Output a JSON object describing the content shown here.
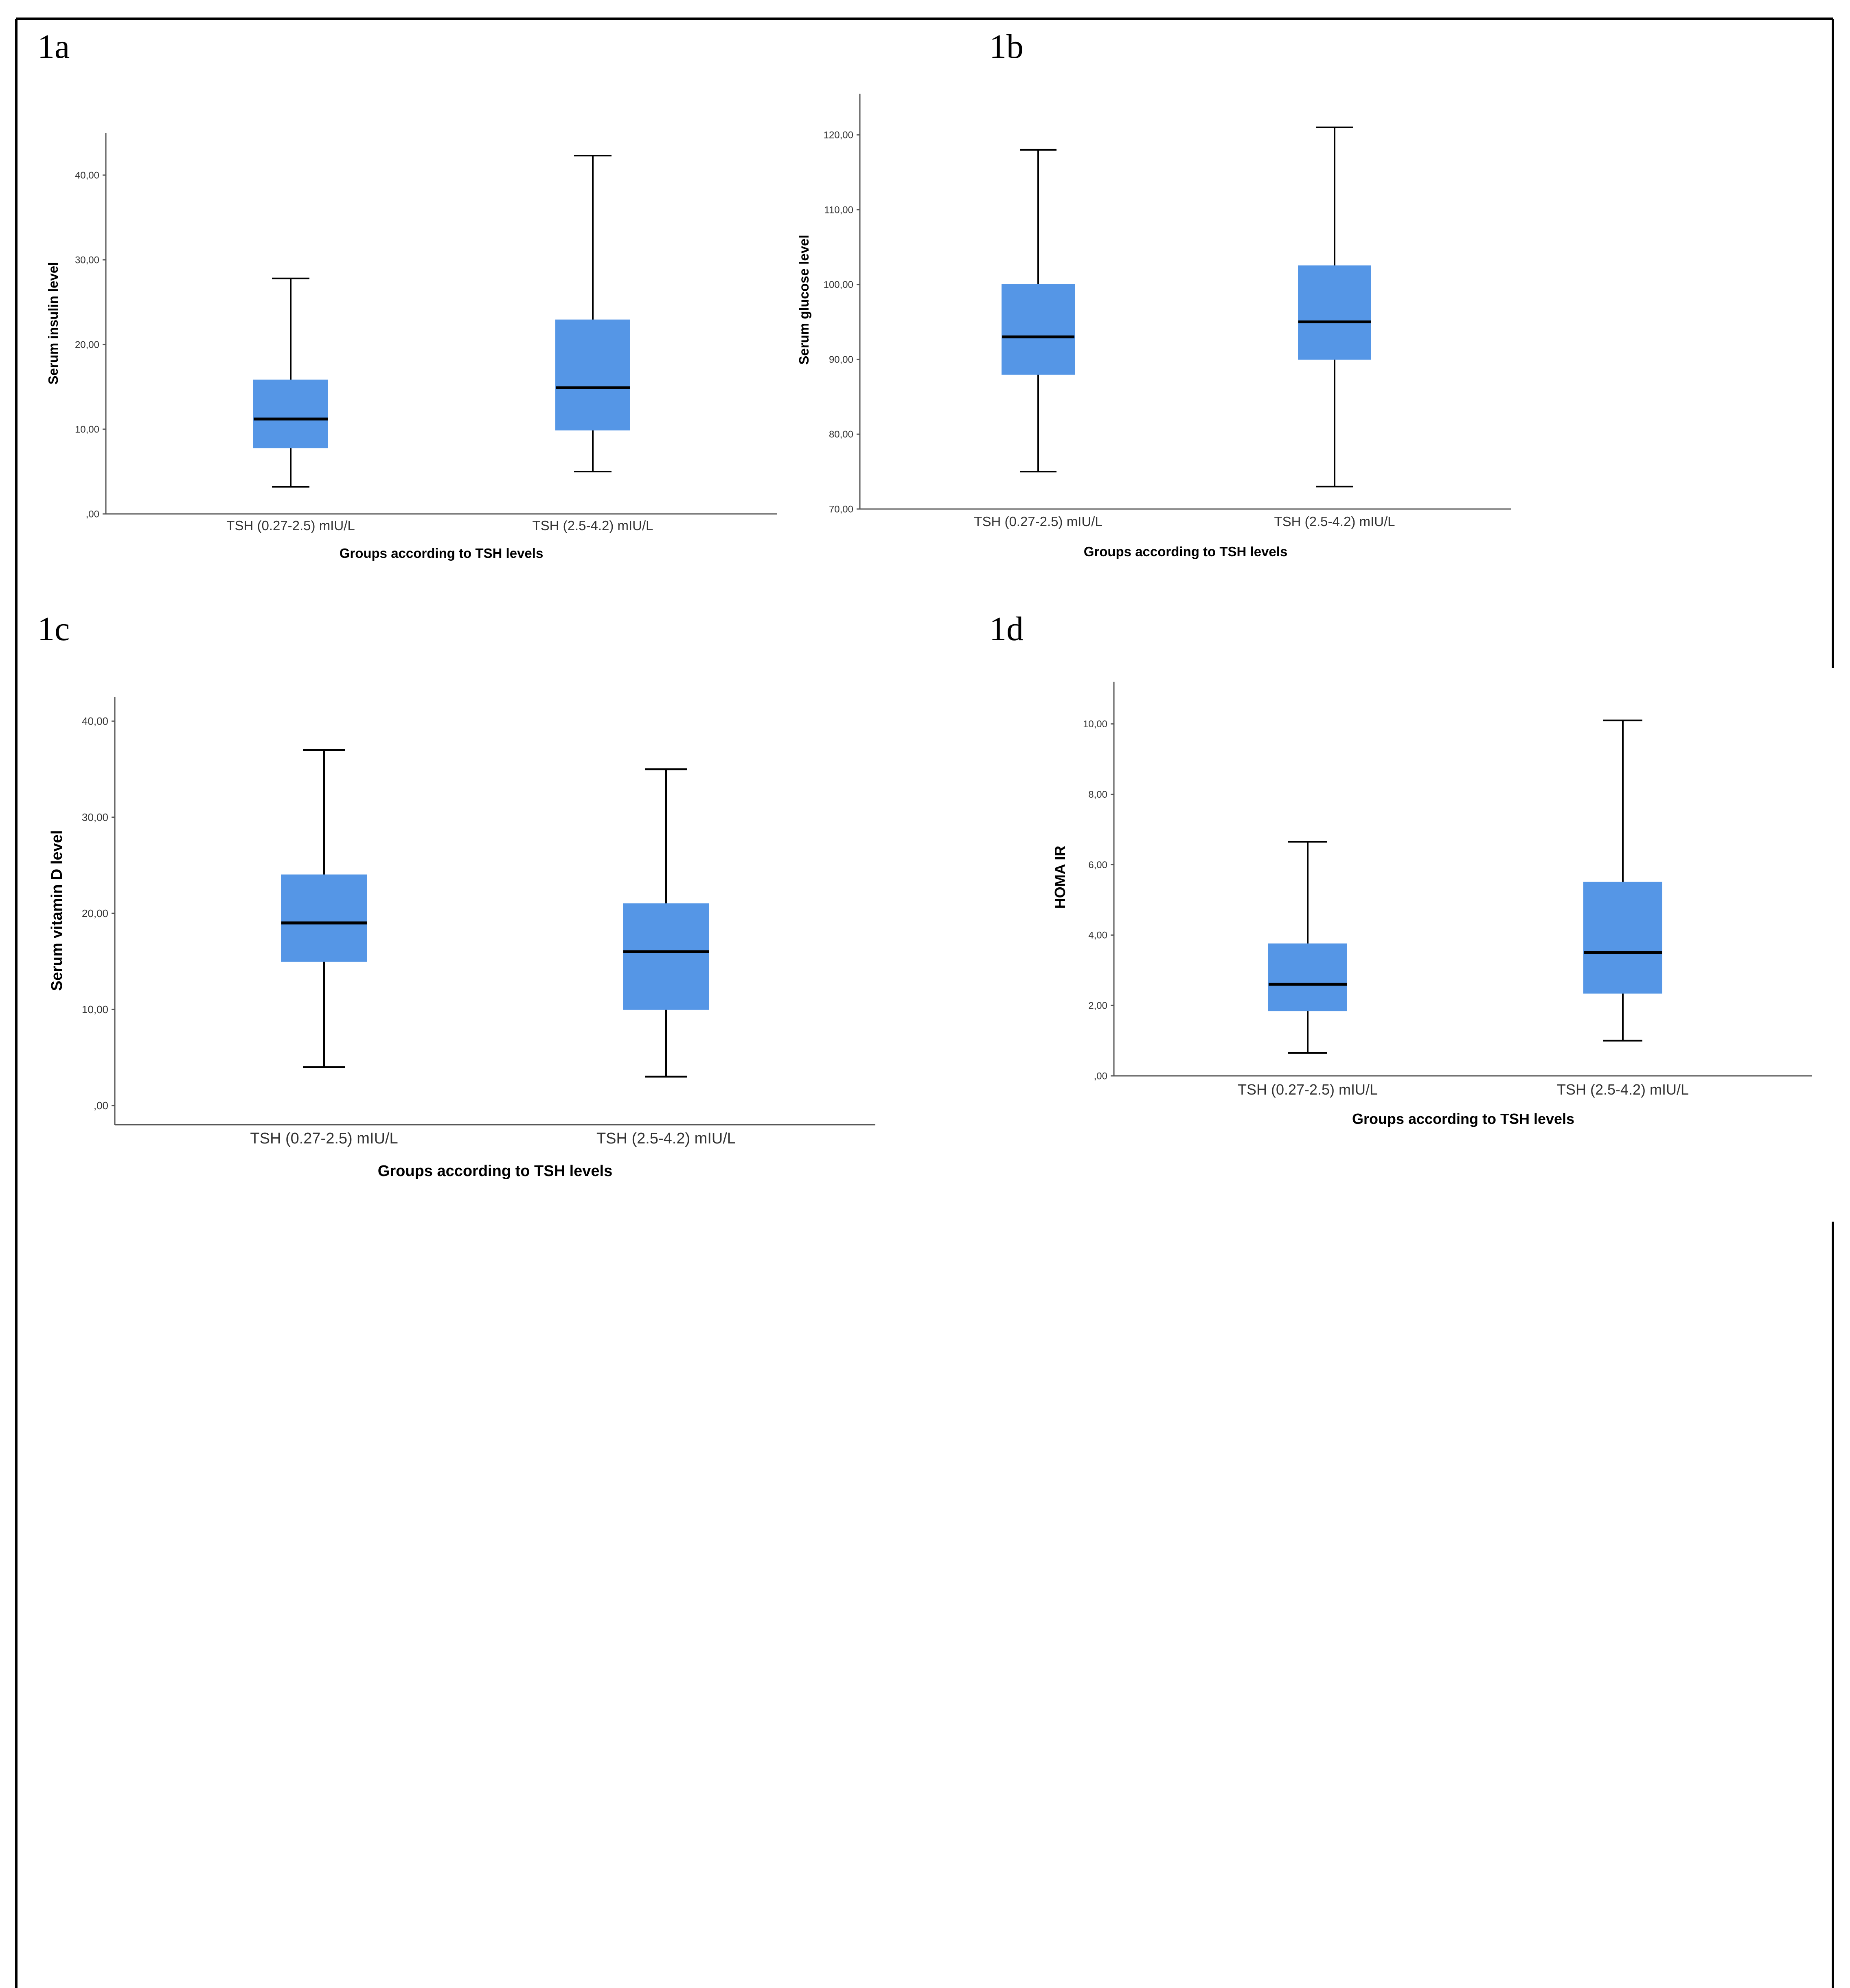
{
  "figure": {
    "box_color": "#5596e6",
    "line_color": "#000000",
    "frame_color": "#000000"
  },
  "chart_data": [
    {
      "panel": "1a",
      "type": "boxplot",
      "title": "",
      "xlabel": "Groups according to TSH levels",
      "ylabel": "Serum insulin level",
      "ylim": [
        0,
        45
      ],
      "yticks": [
        0,
        10,
        20,
        30,
        40
      ],
      "ytick_labels": [
        ",00",
        "10,00",
        "20,00",
        "30,00",
        "40,00"
      ],
      "categories": [
        "TSH (0.27-2.5) mIU/L",
        "TSH (2.5-4.2) mIU/L"
      ],
      "boxes": [
        {
          "min": 3.2,
          "q1": 7.8,
          "median": 11.2,
          "q3": 15.8,
          "max": 27.8
        },
        {
          "min": 5.0,
          "q1": 9.9,
          "median": 14.9,
          "q3": 22.9,
          "max": 42.3
        }
      ]
    },
    {
      "panel": "1b",
      "type": "boxplot",
      "title": "",
      "xlabel": "Groups according to TSH levels",
      "ylabel": "Serum glucose level",
      "ylim": [
        70,
        125.5
      ],
      "yticks": [
        70,
        80,
        90,
        100,
        110,
        120
      ],
      "ytick_labels": [
        "70,00",
        "80,00",
        "90,00",
        "100,00",
        "110,00",
        "120,00"
      ],
      "categories": [
        "TSH (0.27-2.5) mIU/L",
        "TSH (2.5-4.2) mIU/L"
      ],
      "boxes": [
        {
          "min": 75,
          "q1": 88,
          "median": 93,
          "q3": 100,
          "max": 118
        },
        {
          "min": 73,
          "q1": 90,
          "median": 95,
          "q3": 102.5,
          "max": 121
        }
      ]
    },
    {
      "panel": "1c",
      "type": "boxplot",
      "title": "",
      "xlabel": "Groups according to TSH levels",
      "ylabel": "Serum vitamin D level",
      "ylim": [
        -2,
        42.5
      ],
      "yticks": [
        0,
        10,
        20,
        30,
        40
      ],
      "ytick_labels": [
        ",00",
        "10,00",
        "20,00",
        "30,00",
        "40,00"
      ],
      "categories": [
        "TSH (0.27-2.5) mIU/L",
        "TSH (2.5-4.2) mIU/L"
      ],
      "boxes": [
        {
          "min": 4,
          "q1": 15,
          "median": 19,
          "q3": 24,
          "max": 37
        },
        {
          "min": 3,
          "q1": 10,
          "median": 16,
          "q3": 21,
          "max": 35
        }
      ]
    },
    {
      "panel": "1d",
      "type": "boxplot",
      "title": "",
      "xlabel": "Groups according to TSH levels",
      "ylabel": "HOMA IR",
      "ylim": [
        0,
        11.2
      ],
      "yticks": [
        0,
        2,
        4,
        6,
        8,
        10
      ],
      "ytick_labels": [
        ",00",
        "2,00",
        "4,00",
        "6,00",
        "8,00",
        "10,00"
      ],
      "categories": [
        "TSH (0.27-2.5) mIU/L",
        "TSH (2.5-4.2) mIU/L"
      ],
      "boxes": [
        {
          "min": 0.65,
          "q1": 1.85,
          "median": 2.6,
          "q3": 3.75,
          "max": 6.65
        },
        {
          "min": 1.0,
          "q1": 2.35,
          "median": 3.5,
          "q3": 5.5,
          "max": 10.1
        }
      ]
    }
  ]
}
